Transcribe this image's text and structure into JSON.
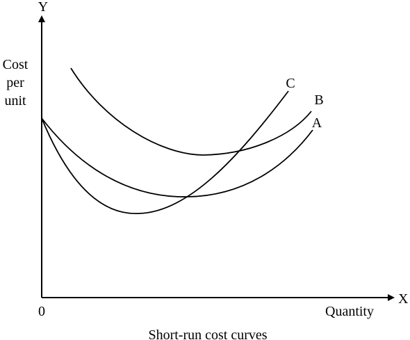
{
  "axes": {
    "y_letter": "Y",
    "x_letter": "X",
    "y_label_lines": [
      "Cost",
      "per",
      "unit"
    ],
    "x_label": "Quantity",
    "origin": "0"
  },
  "curves": [
    {
      "id": "A",
      "label": "A"
    },
    {
      "id": "B",
      "label": "B"
    },
    {
      "id": "C",
      "label": "C"
    }
  ],
  "caption": "Short-run cost curves",
  "colors": {
    "ink": "#000000",
    "background": "#ffffff"
  }
}
